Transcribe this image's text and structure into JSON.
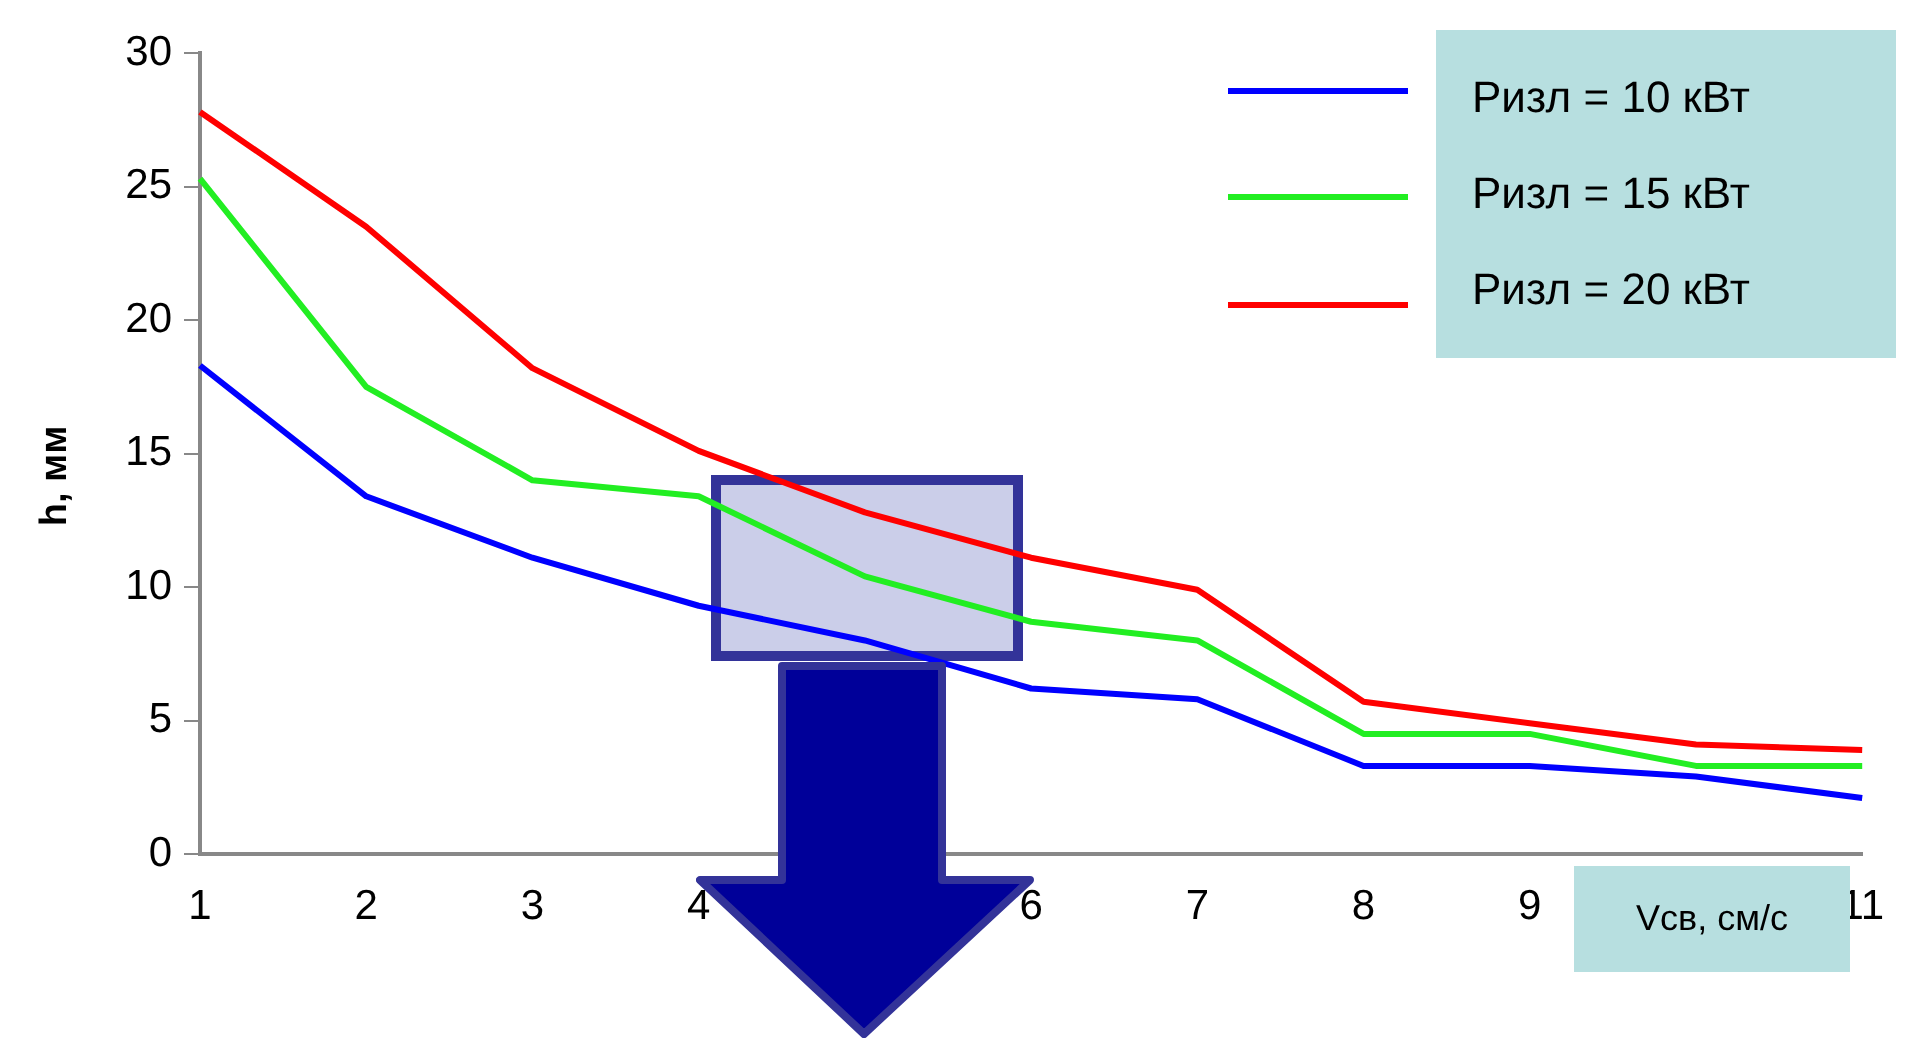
{
  "chart_data": {
    "type": "line",
    "xlabel": "Vсв, см/с",
    "ylabel": "h, мм",
    "categories": [
      "1",
      "2",
      "3",
      "4",
      null,
      "6",
      "7",
      "8",
      "9",
      null,
      "11"
    ],
    "series": [
      {
        "name": "Ризл = 10 кВт",
        "color": "#0000ff",
        "values": [
          18.3,
          13.4,
          11.1,
          9.3,
          8.0,
          6.2,
          5.8,
          3.3,
          3.3,
          2.9,
          2.1
        ]
      },
      {
        "name": "Ризл = 15 кВт",
        "color": "#22ee22",
        "values": [
          25.3,
          17.5,
          14.0,
          13.4,
          10.4,
          8.7,
          8.0,
          4.5,
          4.5,
          3.3,
          3.3
        ]
      },
      {
        "name": "Ризл = 20 кВт",
        "color": "#ff0000",
        "values": [
          27.8,
          23.5,
          18.2,
          15.1,
          12.8,
          11.1,
          9.9,
          5.7,
          4.9,
          4.1,
          3.9
        ]
      }
    ],
    "ylim": [
      0,
      30
    ],
    "yticks": [
      0,
      5,
      10,
      15,
      20,
      25,
      30
    ],
    "grid": false,
    "legend": "top right",
    "marker": "none",
    "line_style": "solid"
  }
}
